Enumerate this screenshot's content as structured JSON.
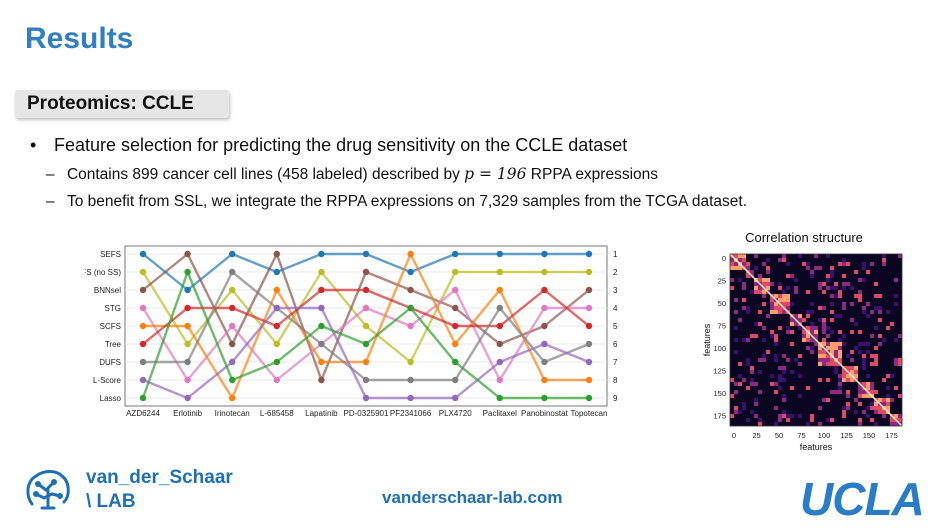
{
  "slide": {
    "title": "Results",
    "section": "Proteomics: CCLE",
    "bullet": "Feature selection for predicting the drug sensitivity on the CCLE dataset",
    "sub1_pre": "Contains 899 cancer cell lines (458 labeled) described by ",
    "sub1_math": "p = 196",
    "sub1_post": " RPPA expressions",
    "sub2": "To benefit from SSL, we integrate the RPPA expressions on 7,329 samples from the TCGA dataset."
  },
  "chart_data": [
    {
      "type": "line",
      "title": "",
      "categories": [
        "AZD6244",
        "Erlotinib",
        "Irinotecan",
        "L-685458",
        "Lapatinib",
        "PD-0325901",
        "PF2341066",
        "PLX4720",
        "Paclitaxel",
        "Panobinostat",
        "Topotecan"
      ],
      "y_ticks_left": [
        "SEFS",
        "SEFS (no SS)",
        "BNNsel",
        "STG",
        "SCFS",
        "Tree",
        "DUFS",
        "L-Score",
        "Lasso"
      ],
      "y_ticks_right": [
        "1",
        "2",
        "3",
        "4",
        "5",
        "6",
        "7",
        "8",
        "9"
      ],
      "series": [
        {
          "name": "SEFS",
          "color": "#1f77b4",
          "values": [
            1,
            3,
            1,
            2,
            1,
            1,
            2,
            1,
            1,
            1,
            1
          ]
        },
        {
          "name": "SEFS (no SS)",
          "color": "#bcbd22",
          "values": [
            2,
            6,
            3,
            6,
            2,
            5,
            7,
            2,
            2,
            2,
            2
          ]
        },
        {
          "name": "BNNsel",
          "color": "#8c564b",
          "values": [
            3,
            1,
            6,
            1,
            8,
            2,
            3,
            4,
            6,
            5,
            3
          ]
        },
        {
          "name": "STG",
          "color": "#e377c2",
          "values": [
            4,
            8,
            5,
            8,
            6,
            4,
            5,
            3,
            8,
            4,
            4
          ]
        },
        {
          "name": "SCFS",
          "color": "#ff7f0e",
          "values": [
            5,
            5,
            9,
            3,
            7,
            7,
            1,
            6,
            3,
            8,
            8
          ]
        },
        {
          "name": "Tree",
          "color": "#d62728",
          "values": [
            6,
            4,
            4,
            5,
            3,
            3,
            4,
            5,
            5,
            3,
            5
          ]
        },
        {
          "name": "DUFS",
          "color": "#7f7f7f",
          "values": [
            7,
            7,
            2,
            4,
            6,
            8,
            8,
            8,
            4,
            7,
            6
          ]
        },
        {
          "name": "L-Score",
          "color": "#9467bd",
          "values": [
            8,
            9,
            7,
            4,
            4,
            9,
            9,
            9,
            7,
            6,
            7
          ]
        },
        {
          "name": "Lasso",
          "color": "#2ca02c",
          "values": [
            9,
            2,
            8,
            7,
            5,
            6,
            4,
            7,
            9,
            9,
            9
          ]
        }
      ]
    },
    {
      "type": "heatmap",
      "title": "Correlation structure",
      "xlabel": "features",
      "ylabel": "features",
      "x_ticks": [
        "0",
        "25",
        "50",
        "75",
        "100",
        "125",
        "150",
        "175"
      ],
      "y_ticks": [
        "0",
        "25",
        "50",
        "75",
        "100",
        "125",
        "150",
        "175"
      ]
    }
  ],
  "footer": {
    "lab_line1": "van_der_Schaar",
    "lab_line2": "\\ LAB",
    "url": "vanderschaar-lab.com",
    "university": "UCLA",
    "brand_color": "#1e6fb5"
  }
}
